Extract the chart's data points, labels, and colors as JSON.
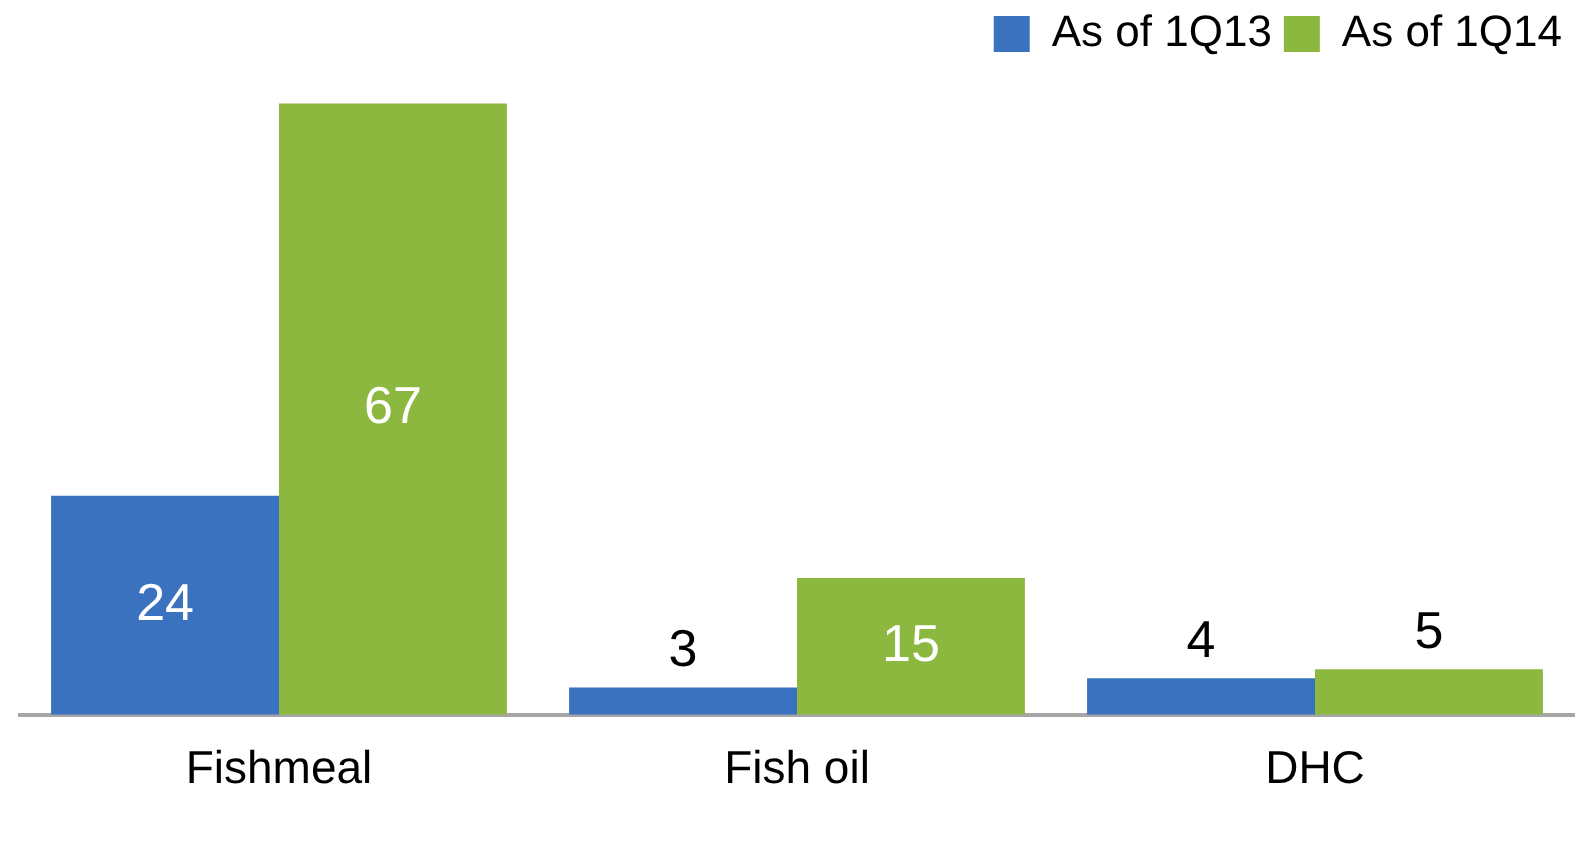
{
  "chart_data": {
    "type": "bar",
    "categories": [
      "Fishmeal",
      "Fish oil",
      "DHC"
    ],
    "series": [
      {
        "name": "As of 1Q13",
        "color": "#3b72c0",
        "values": [
          24,
          3,
          4
        ]
      },
      {
        "name": "As of 1Q14",
        "color": "#8db840",
        "values": [
          67,
          15,
          5
        ]
      }
    ],
    "data_labels": true,
    "legend": "top right",
    "grid": false,
    "tick_labels": "x"
  }
}
